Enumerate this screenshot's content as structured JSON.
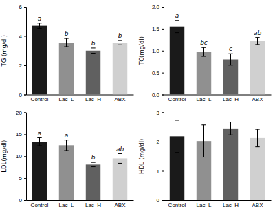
{
  "chart_data": [
    {
      "type": "bar",
      "categories": [
        "Control",
        "Lac_L",
        "Lac_H",
        "ABX"
      ],
      "values": [
        4.7,
        3.55,
        3.0,
        3.55
      ],
      "errors": [
        0.18,
        0.28,
        0.18,
        0.15
      ],
      "colors": [
        "#1a1a1a",
        "#909090",
        "#606060",
        "#d0d0d0"
      ],
      "ylabel": "TG (mg/dl)",
      "ylim": [
        0,
        6
      ],
      "yticks": [
        0,
        2,
        4,
        6
      ],
      "letters": [
        "a",
        "b",
        "b",
        "b"
      ]
    },
    {
      "type": "bar",
      "categories": [
        "Control",
        "Lac_L",
        "Lac_H",
        "ABX"
      ],
      "values": [
        1.55,
        0.97,
        0.8,
        1.22
      ],
      "errors": [
        0.14,
        0.1,
        0.13,
        0.08
      ],
      "colors": [
        "#1a1a1a",
        "#909090",
        "#606060",
        "#d0d0d0"
      ],
      "ylabel": "TC(mg/dl)",
      "ylim": [
        0,
        2.0
      ],
      "yticks": [
        {
          "value": 0.0,
          "label": "0.0"
        },
        0.5,
        {
          "value": 1.0,
          "label": "1.0"
        },
        1.5,
        {
          "value": 2.0,
          "label": "2.0"
        }
      ],
      "letters": [
        "a",
        "bc",
        "c",
        "ab"
      ]
    },
    {
      "type": "bar",
      "categories": [
        "Control",
        "Lac_L",
        "Lac_H",
        "ABX"
      ],
      "values": [
        13.3,
        12.5,
        8.1,
        9.5
      ],
      "errors": [
        0.9,
        1.2,
        0.5,
        1.1
      ],
      "colors": [
        "#1a1a1a",
        "#909090",
        "#606060",
        "#d0d0d0"
      ],
      "ylabel": "LDL(mg/dl)",
      "ylim": [
        0,
        20
      ],
      "yticks": [
        0,
        5,
        10,
        15,
        20
      ],
      "letters": [
        "a",
        "a",
        "b",
        "ab"
      ]
    },
    {
      "type": "bar",
      "categories": [
        "Control",
        "Lac_L",
        "Lac_H",
        "ABX"
      ],
      "values": [
        2.18,
        2.02,
        2.45,
        2.12
      ],
      "errors": [
        0.55,
        0.55,
        0.22,
        0.3
      ],
      "colors": [
        "#1a1a1a",
        "#909090",
        "#606060",
        "#d0d0d0"
      ],
      "ylabel": "HDL (mg/dl)",
      "ylim": [
        0,
        3
      ],
      "yticks": [
        0,
        1,
        2,
        3
      ]
    }
  ]
}
